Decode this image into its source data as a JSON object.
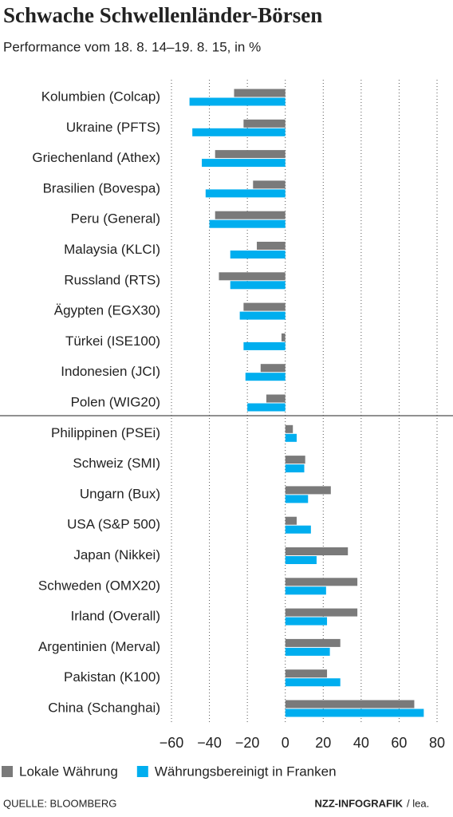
{
  "chart_data": {
    "type": "bar",
    "orientation": "horizontal",
    "title": "Schwache Schwellenländer-Börsen",
    "subtitle": "Performance vom 18. 8. 14–19. 8. 15, in %",
    "categories": [
      "Kolumbien (Colcap)",
      "Ukraine (PFTS)",
      "Griechenland (Athex)",
      "Brasilien (Bovespa)",
      "Peru (General)",
      "Malaysia (KLCI)",
      "Russland (RTS)",
      "Ägypten (EGX30)",
      "Türkei (ISE100)",
      "Indonesien (JCI)",
      "Polen (WIG20)",
      "Philippinen (PSEi)",
      "Schweiz (SMI)",
      "Ungarn (Bux)",
      "USA (S&P 500)",
      "Japan (Nikkei)",
      "Schweden (OMX20)",
      "Irland (Overall)",
      "Argentinien (Merval)",
      "Pakistan (K100)",
      "China (Schanghai)"
    ],
    "series": [
      {
        "name": "Lokale Währung",
        "color": "#7a7a7a",
        "values": [
          -27,
          -22,
          -37,
          -17,
          -37,
          -15,
          -35,
          -22,
          -2,
          -13,
          -10,
          4,
          10.5,
          24,
          6,
          33,
          38,
          38,
          29,
          22,
          68
        ]
      },
      {
        "name": "Währungsbereinigt in Franken",
        "color": "#00aeef",
        "values": [
          -50.5,
          -49,
          -44,
          -42,
          -40,
          -29,
          -29,
          -24,
          -22,
          -21,
          -20,
          6,
          10,
          12,
          13.5,
          16.5,
          21.5,
          22,
          23.5,
          29,
          73
        ]
      }
    ],
    "xlim": [
      -60,
      80
    ],
    "xticks": [
      {
        "value": -60,
        "label": "−60"
      },
      {
        "value": -40,
        "label": "−40"
      },
      {
        "value": -20,
        "label": "−20"
      },
      0,
      20,
      40,
      60,
      80
    ],
    "grid": true,
    "source": "QUELLE: BLOOMBERG",
    "credit": "NZZ-INFOGRAFIK",
    "author": "/ lea."
  }
}
